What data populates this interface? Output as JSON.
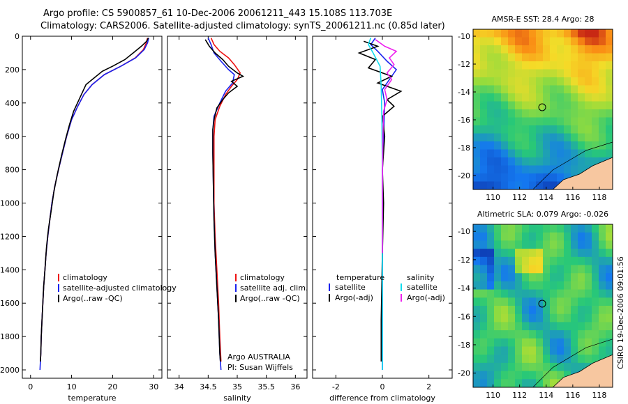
{
  "header": {
    "line1": "Argo profile: CS 5900857_61 10-Dec-2006 20061211_443 15.108S 113.703E",
    "line2": "Climatology: CARS2006. Satellite-adjusted climatology: synTS_20061211.nc (0.85d later)"
  },
  "credit": "CSIRO 19-Dec-2006 09:01:56",
  "colors": {
    "climatology": "#ee1111",
    "satellite": "#1a22ee",
    "argo": "#000000",
    "salinity_satellite": "#11ddee",
    "salinity_argo": "#ee22ee"
  },
  "chart_data": [
    {
      "type": "line",
      "xlabel": "temperature",
      "ylabel": "",
      "xlim": [
        -2,
        32
      ],
      "ylim": [
        0,
        2050
      ],
      "y_inverted": true,
      "xticks": [
        0,
        10,
        20,
        30
      ],
      "yticks": [
        0,
        200,
        400,
        600,
        800,
        1000,
        1200,
        1400,
        1600,
        1800,
        2000
      ],
      "legend": {
        "placement": "bottom-right",
        "entries": [
          "climatology",
          "satellite-adjusted climatology",
          "Argo(..raw -QC)"
        ]
      },
      "series": [
        {
          "name": "climatology",
          "color": "#ee1111",
          "points": [
            [
              28.5,
              10
            ],
            [
              28.2,
              40
            ],
            [
              27.5,
              80
            ],
            [
              25.5,
              130
            ],
            [
              22,
              180
            ],
            [
              18,
              230
            ],
            [
              15,
              290
            ],
            [
              13,
              350
            ],
            [
              11.5,
              420
            ],
            [
              10,
              500
            ],
            [
              8.8,
              600
            ],
            [
              7.8,
              700
            ],
            [
              6.8,
              800
            ],
            [
              5.9,
              900
            ],
            [
              5.2,
              1000
            ],
            [
              4.7,
              1100
            ],
            [
              4.2,
              1200
            ],
            [
              3.8,
              1300
            ],
            [
              3.5,
              1400
            ],
            [
              3.2,
              1500
            ],
            [
              3,
              1600
            ],
            [
              2.8,
              1700
            ],
            [
              2.6,
              1800
            ],
            [
              2.5,
              1900
            ],
            [
              2.4,
              1950
            ]
          ]
        },
        {
          "name": "satellite-adjusted climatology",
          "color": "#1a22ee",
          "points": [
            [
              28.8,
              10
            ],
            [
              28.5,
              40
            ],
            [
              27.7,
              80
            ],
            [
              25.6,
              130
            ],
            [
              22,
              180
            ],
            [
              18,
              230
            ],
            [
              15,
              290
            ],
            [
              13,
              350
            ],
            [
              11.5,
              420
            ],
            [
              10,
              500
            ],
            [
              8.8,
              600
            ],
            [
              7.8,
              700
            ],
            [
              6.8,
              800
            ],
            [
              5.9,
              900
            ],
            [
              5.2,
              1000
            ],
            [
              4.7,
              1100
            ],
            [
              4.2,
              1200
            ],
            [
              3.8,
              1300
            ],
            [
              3.5,
              1400
            ],
            [
              3.2,
              1500
            ],
            [
              3,
              1600
            ],
            [
              2.8,
              1700
            ],
            [
              2.6,
              1800
            ],
            [
              2.5,
              1900
            ],
            [
              2.3,
              2000
            ]
          ]
        },
        {
          "name": "Argo(..raw -QC)",
          "color": "#000000",
          "points": [
            [
              28.7,
              10
            ],
            [
              28.3,
              30
            ],
            [
              27,
              60
            ],
            [
              25.5,
              90
            ],
            [
              23,
              140
            ],
            [
              20,
              180
            ],
            [
              17.5,
              210
            ],
            [
              15,
              260
            ],
            [
              13.5,
              290
            ],
            [
              12,
              370
            ],
            [
              10.5,
              450
            ],
            [
              9.5,
              530
            ],
            [
              8.5,
              620
            ],
            [
              7.5,
              720
            ],
            [
              6.5,
              830
            ],
            [
              5.7,
              930
            ],
            [
              5,
              1050
            ],
            [
              4.4,
              1150
            ],
            [
              3.9,
              1260
            ],
            [
              3.5,
              1400
            ],
            [
              3.2,
              1500
            ],
            [
              3,
              1600
            ],
            [
              2.8,
              1700
            ],
            [
              2.6,
              1800
            ],
            [
              2.5,
              1900
            ],
            [
              2.4,
              1950
            ]
          ]
        }
      ]
    },
    {
      "type": "line",
      "xlabel": "salinity",
      "xlim": [
        33.8,
        36.2
      ],
      "ylim": [
        0,
        2050
      ],
      "y_inverted": true,
      "xticks": [
        34,
        34.5,
        35,
        35.5,
        36
      ],
      "xtick_labels": [
        "34",
        "34.5",
        "35",
        "35.5",
        "36"
      ],
      "legend": {
        "placement": "bottom-right",
        "entries": [
          "climatology",
          "satellite adj. clim.",
          "Argo(..raw -QC)"
        ]
      },
      "annotation": [
        "Argo AUSTRALIA",
        "PI: Susan Wijffels"
      ],
      "series": [
        {
          "name": "climatology",
          "color": "#ee1111",
          "points": [
            [
              34.55,
              10
            ],
            [
              34.6,
              50
            ],
            [
              34.7,
              90
            ],
            [
              34.85,
              130
            ],
            [
              34.95,
              170
            ],
            [
              35.05,
              220
            ],
            [
              35.0,
              260
            ],
            [
              34.9,
              300
            ],
            [
              34.8,
              350
            ],
            [
              34.7,
              420
            ],
            [
              34.62,
              500
            ],
            [
              34.6,
              600
            ],
            [
              34.6,
              800
            ],
            [
              34.6,
              1000
            ],
            [
              34.62,
              1200
            ],
            [
              34.65,
              1400
            ],
            [
              34.68,
              1600
            ],
            [
              34.7,
              1800
            ],
            [
              34.72,
              1950
            ]
          ]
        },
        {
          "name": "satellite adj. clim.",
          "color": "#1a22ee",
          "points": [
            [
              34.5,
              10
            ],
            [
              34.55,
              50
            ],
            [
              34.6,
              100
            ],
            [
              34.72,
              150
            ],
            [
              34.85,
              200
            ],
            [
              34.95,
              230
            ],
            [
              34.92,
              280
            ],
            [
              34.8,
              330
            ],
            [
              34.7,
              400
            ],
            [
              34.6,
              480
            ],
            [
              34.58,
              560
            ],
            [
              34.58,
              700
            ],
            [
              34.59,
              900
            ],
            [
              34.6,
              1100
            ],
            [
              34.62,
              1300
            ],
            [
              34.65,
              1500
            ],
            [
              34.68,
              1700
            ],
            [
              34.7,
              1900
            ],
            [
              34.72,
              2000
            ]
          ]
        },
        {
          "name": "Argo(..raw -QC)",
          "color": "#000000",
          "points": [
            [
              34.45,
              20
            ],
            [
              34.52,
              60
            ],
            [
              34.62,
              100
            ],
            [
              34.75,
              140
            ],
            [
              34.85,
              180
            ],
            [
              35.0,
              220
            ],
            [
              35.1,
              240
            ],
            [
              34.9,
              270
            ],
            [
              35.0,
              300
            ],
            [
              34.85,
              340
            ],
            [
              34.75,
              380
            ],
            [
              34.65,
              430
            ],
            [
              34.6,
              500
            ],
            [
              34.58,
              560
            ],
            [
              34.58,
              700
            ],
            [
              34.59,
              900
            ],
            [
              34.6,
              1100
            ],
            [
              34.62,
              1300
            ],
            [
              34.65,
              1500
            ],
            [
              34.68,
              1700
            ],
            [
              34.7,
              1900
            ],
            [
              34.71,
              1950
            ]
          ]
        }
      ]
    },
    {
      "type": "line",
      "xlabel": "difference from climatology",
      "xlim": [
        -3,
        3
      ],
      "ylim": [
        0,
        2050
      ],
      "y_inverted": true,
      "xticks": [
        -2,
        0,
        2
      ],
      "legend": {
        "placement": "bottom",
        "group_headers": [
          "temperature",
          "salinity"
        ],
        "entries": [
          "satellite",
          "Argo(-adj)",
          "satellite",
          "Argo(-adj)"
        ]
      },
      "series": [
        {
          "name": "satellite",
          "color": "#1a22ee",
          "points": [
            [
              -0.3,
              10
            ],
            [
              -0.5,
              50
            ],
            [
              -0.2,
              90
            ],
            [
              0.2,
              150
            ],
            [
              0.6,
              200
            ],
            [
              0.3,
              260
            ],
            [
              0.0,
              320
            ],
            [
              0.1,
              400
            ],
            [
              0.05,
              600
            ],
            [
              0.0,
              800
            ],
            [
              0.0,
              1200
            ],
            [
              0.0,
              1600
            ],
            [
              0.0,
              2000
            ]
          ]
        },
        {
          "name": "Argo(-adj)",
          "color": "#000000",
          "points": [
            [
              -0.8,
              30
            ],
            [
              -0.2,
              60
            ],
            [
              -1.0,
              100
            ],
            [
              -0.3,
              140
            ],
            [
              -0.6,
              190
            ],
            [
              0.4,
              240
            ],
            [
              -0.2,
              280
            ],
            [
              0.8,
              330
            ],
            [
              0.2,
              380
            ],
            [
              0.5,
              420
            ],
            [
              0.0,
              480
            ],
            [
              0.1,
              600
            ],
            [
              0.0,
              800
            ],
            [
              0.05,
              1000
            ],
            [
              0.0,
              1300
            ],
            [
              -0.05,
              1700
            ],
            [
              -0.05,
              1950
            ]
          ]
        },
        {
          "name": "satellite",
          "color": "#11ddee",
          "points": [
            [
              -0.5,
              10
            ],
            [
              -0.6,
              50
            ],
            [
              -0.4,
              100
            ],
            [
              -0.1,
              180
            ],
            [
              -0.05,
              300
            ],
            [
              -0.02,
              500
            ],
            [
              0.0,
              800
            ],
            [
              0.0,
              1200
            ],
            [
              0.0,
              1600
            ],
            [
              0.0,
              2000
            ]
          ]
        },
        {
          "name": "Argo(-adj)",
          "color": "#ee22ee",
          "points": [
            [
              -0.3,
              20
            ],
            [
              0.1,
              60
            ],
            [
              0.6,
              90
            ],
            [
              0.3,
              130
            ],
            [
              0.5,
              170
            ],
            [
              0.2,
              220
            ],
            [
              0.4,
              260
            ],
            [
              0.1,
              320
            ],
            [
              0.2,
              380
            ],
            [
              0.05,
              450
            ],
            [
              0.02,
              600
            ],
            [
              0.0,
              900
            ],
            [
              0.0,
              1300
            ]
          ]
        }
      ]
    },
    {
      "type": "heatmap",
      "title": "AMSR-E SST: 28.4 Argo: 28",
      "xlim": [
        108.5,
        119
      ],
      "ylim": [
        -21,
        -9.5
      ],
      "xticks": [
        110,
        112,
        114,
        116,
        118
      ],
      "yticks": [
        -10,
        -12,
        -14,
        -16,
        -18,
        -20
      ],
      "marker": [
        113.7,
        -15.1
      ]
    },
    {
      "type": "heatmap",
      "title": "Altimetric SLA: 0.079 Argo: -0.026",
      "xlim": [
        108.5,
        119
      ],
      "ylim": [
        -21,
        -9.5
      ],
      "xticks": [
        110,
        112,
        114,
        116,
        118
      ],
      "yticks": [
        -10,
        -12,
        -14,
        -16,
        -18,
        -20
      ],
      "marker": [
        113.7,
        -15.1
      ]
    }
  ]
}
